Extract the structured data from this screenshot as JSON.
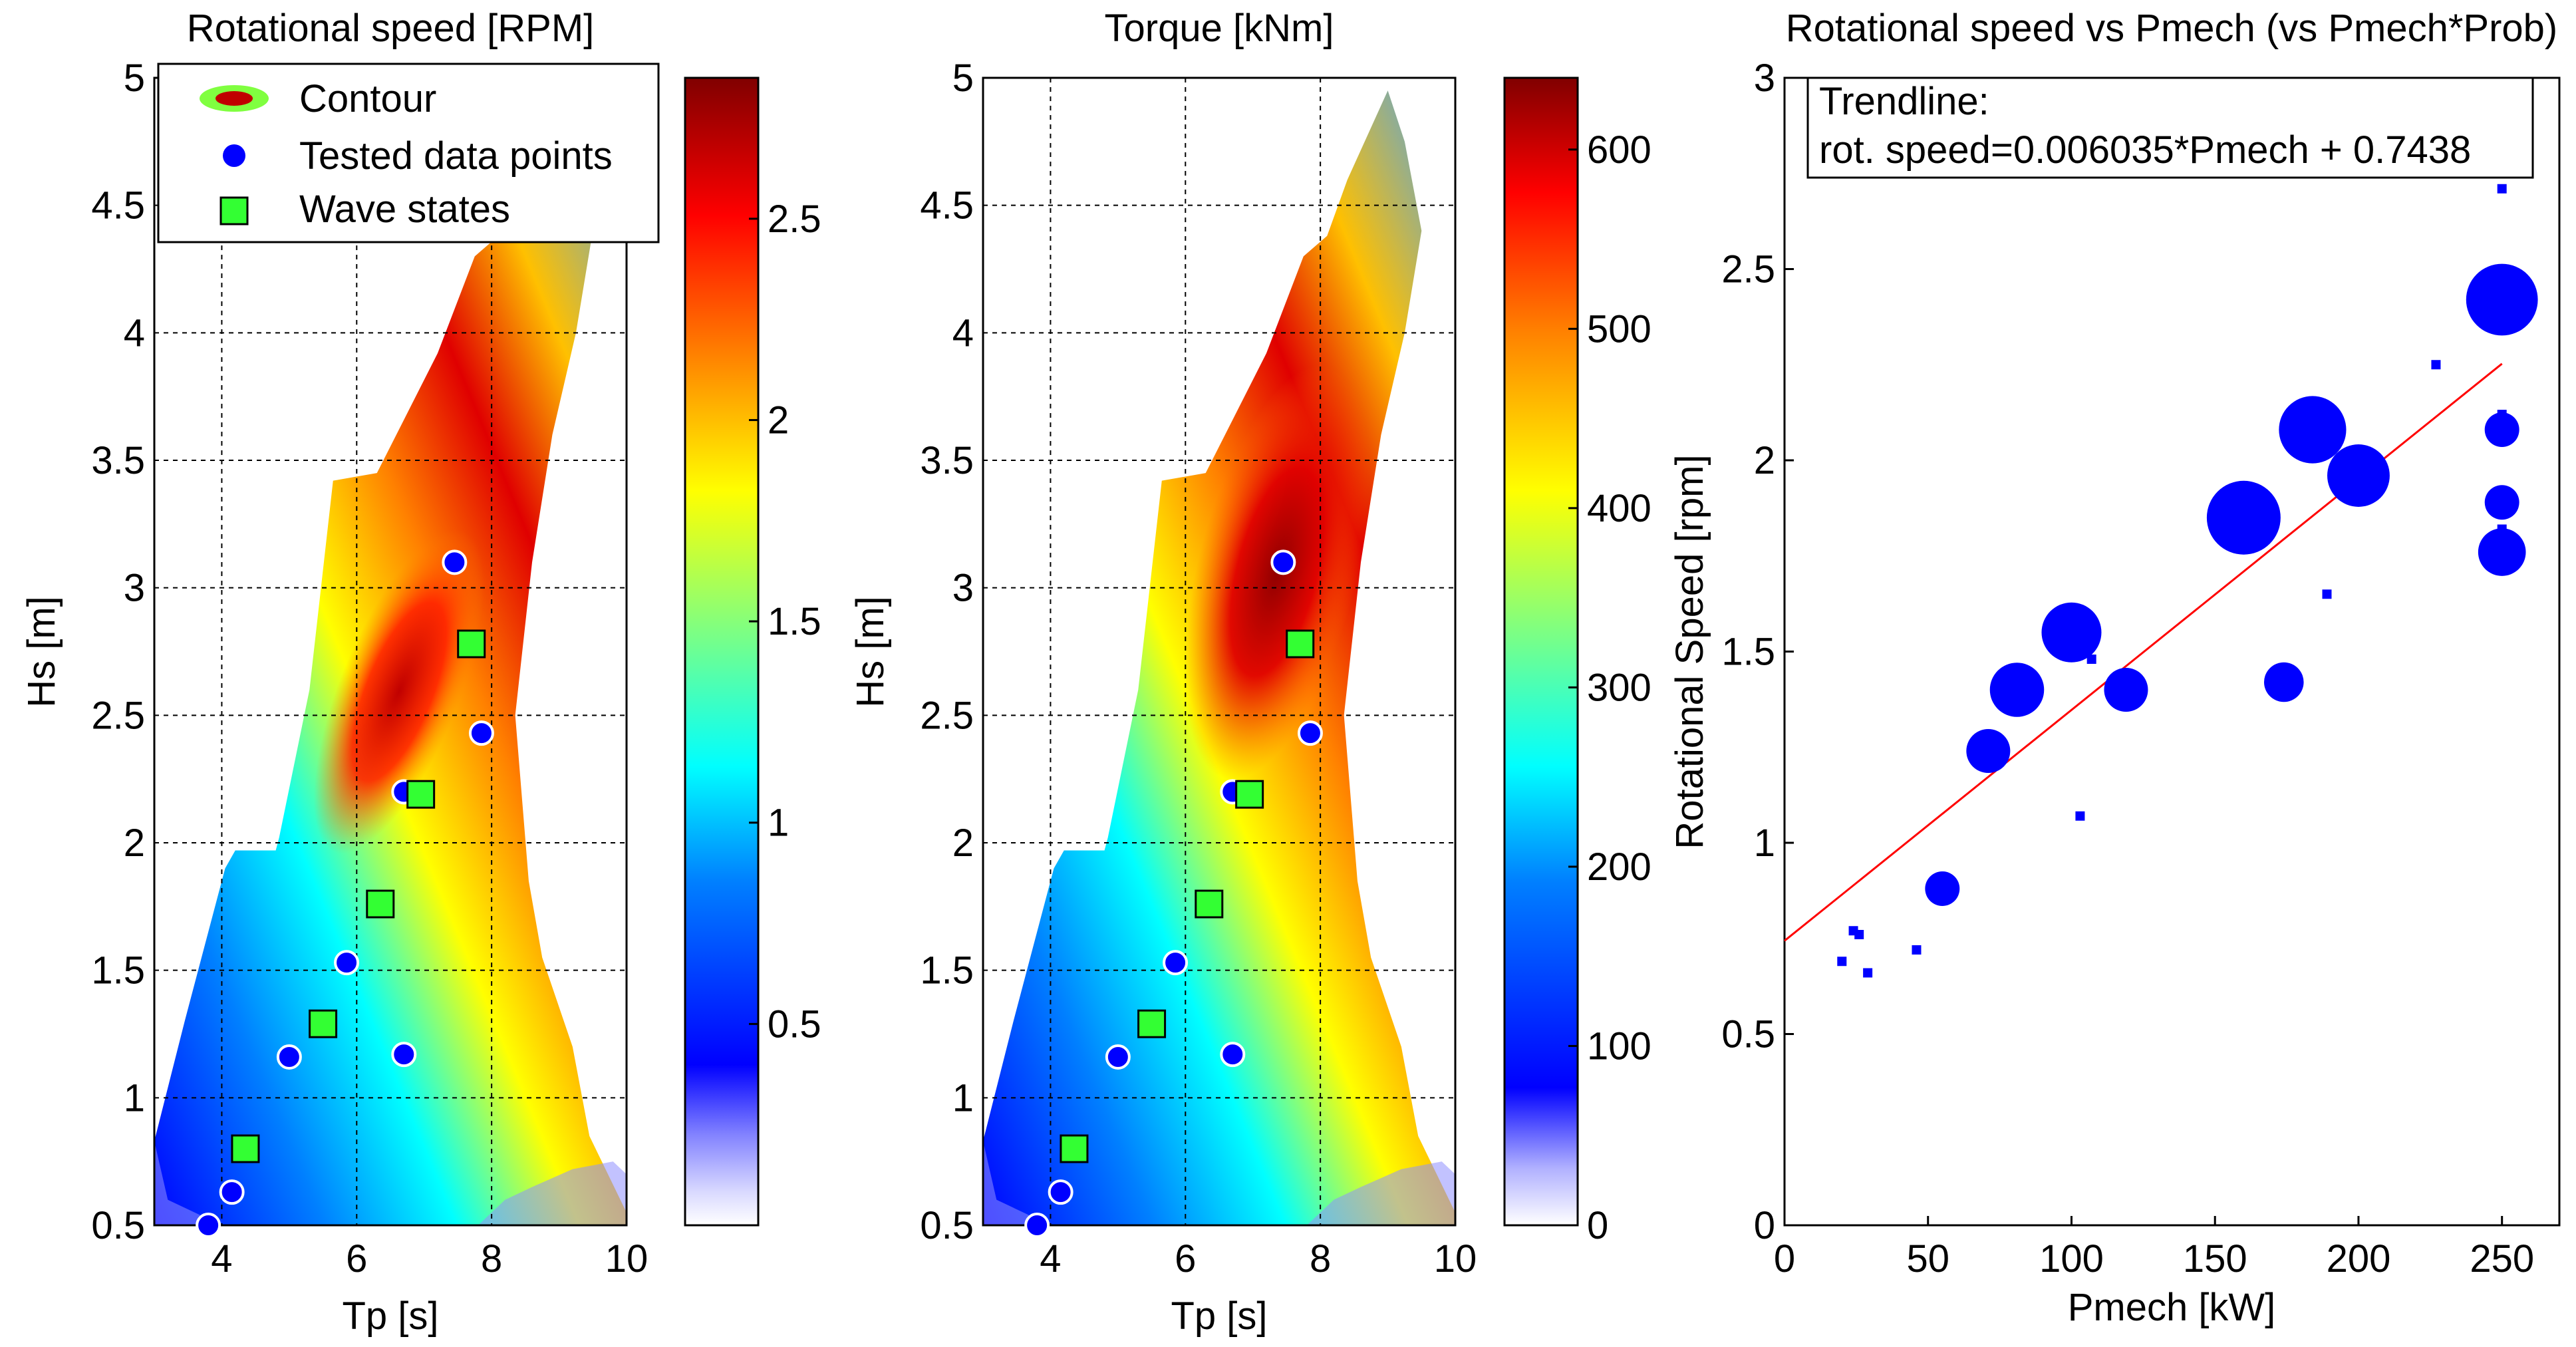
{
  "chart_data": [
    {
      "type": "contour",
      "title": "Rotational speed [RPM]",
      "xlabel": "Tp [s]",
      "ylabel": "Hs [m]",
      "xlim": [
        3,
        10
      ],
      "ylim": [
        0.5,
        5
      ],
      "xticks": [
        "4",
        "6",
        "8",
        "10"
      ],
      "yticks": [
        "0.5",
        "1",
        "1.5",
        "2",
        "2.5",
        "3",
        "3.5",
        "4",
        "4.5",
        "5"
      ],
      "grid": true,
      "colorbar": {
        "range": [
          0,
          2.85
        ],
        "ticks": [
          "0.5",
          "1",
          "1.5",
          "2",
          "2.5"
        ]
      },
      "legend": {
        "placement": "top-left",
        "entries": [
          "Contour",
          "Tested data points",
          "Wave states"
        ]
      },
      "tested_points": [
        {
          "x": 3.8,
          "y": 0.5
        },
        {
          "x": 4.15,
          "y": 0.63
        },
        {
          "x": 5.0,
          "y": 1.16
        },
        {
          "x": 6.7,
          "y": 1.17
        },
        {
          "x": 5.85,
          "y": 1.53
        },
        {
          "x": 6.7,
          "y": 2.2
        },
        {
          "x": 7.85,
          "y": 2.43
        },
        {
          "x": 7.45,
          "y": 3.1
        }
      ],
      "wave_states": [
        {
          "x": 4.35,
          "y": 0.8
        },
        {
          "x": 5.5,
          "y": 1.29
        },
        {
          "x": 6.35,
          "y": 1.76
        },
        {
          "x": 6.95,
          "y": 2.19
        },
        {
          "x": 7.7,
          "y": 2.78
        }
      ]
    },
    {
      "type": "contour",
      "title": "Torque [kNm]",
      "xlabel": "Tp [s]",
      "ylabel": "Hs [m]",
      "xlim": [
        3,
        10
      ],
      "ylim": [
        0.5,
        5
      ],
      "xticks": [
        "4",
        "6",
        "8",
        "10"
      ],
      "yticks": [
        "0.5",
        "1",
        "1.5",
        "2",
        "2.5",
        "3",
        "3.5",
        "4",
        "4.5",
        "5"
      ],
      "grid": true,
      "colorbar": {
        "range": [
          0,
          640
        ],
        "ticks": [
          "0",
          "100",
          "200",
          "300",
          "400",
          "500",
          "600"
        ]
      },
      "tested_points": [
        {
          "x": 3.8,
          "y": 0.5
        },
        {
          "x": 4.15,
          "y": 0.63
        },
        {
          "x": 5.0,
          "y": 1.16
        },
        {
          "x": 6.7,
          "y": 1.17
        },
        {
          "x": 5.85,
          "y": 1.53
        },
        {
          "x": 6.7,
          "y": 2.2
        },
        {
          "x": 7.85,
          "y": 2.43
        },
        {
          "x": 7.45,
          "y": 3.1
        }
      ],
      "wave_states": [
        {
          "x": 4.35,
          "y": 0.8
        },
        {
          "x": 5.5,
          "y": 1.29
        },
        {
          "x": 6.35,
          "y": 1.76
        },
        {
          "x": 6.95,
          "y": 2.19
        },
        {
          "x": 7.7,
          "y": 2.78
        }
      ]
    },
    {
      "type": "scatter",
      "title": "Rotational speed vs Pmech (vs Pmech*Prob)",
      "xlabel": "Pmech [kW]",
      "ylabel": "Rotational Speed [rpm]",
      "xlim": [
        0,
        270
      ],
      "ylim": [
        0,
        3
      ],
      "xticks": [
        "0",
        "50",
        "100",
        "150",
        "200",
        "250"
      ],
      "yticks": [
        "0",
        "0.5",
        "1",
        "1.5",
        "2",
        "2.5",
        "3"
      ],
      "grid": false,
      "annotation": [
        "Trendline:",
        "rot. speed=0.006035*Pmech + 0.7438"
      ],
      "trendline": {
        "slope": 0.006035,
        "intercept": 0.7438,
        "x_range": [
          0,
          250
        ]
      },
      "points": [
        {
          "x": 20,
          "y": 0.69,
          "w": 1
        },
        {
          "x": 24,
          "y": 0.77,
          "w": 1
        },
        {
          "x": 26,
          "y": 0.76,
          "w": 1
        },
        {
          "x": 29,
          "y": 0.66,
          "w": 1
        },
        {
          "x": 46,
          "y": 0.72,
          "w": 1
        },
        {
          "x": 55,
          "y": 0.88,
          "w": 2
        },
        {
          "x": 71,
          "y": 1.24,
          "w": 4
        },
        {
          "x": 81,
          "y": 1.4,
          "w": 7
        },
        {
          "x": 100,
          "y": 1.55,
          "w": 9
        },
        {
          "x": 103,
          "y": 1.07,
          "w": 1
        },
        {
          "x": 107,
          "y": 1.48,
          "w": 1
        },
        {
          "x": 119,
          "y": 1.4,
          "w": 4
        },
        {
          "x": 160,
          "y": 1.85,
          "w": 15
        },
        {
          "x": 174,
          "y": 1.42,
          "w": 3
        },
        {
          "x": 184,
          "y": 2.08,
          "w": 12
        },
        {
          "x": 189,
          "y": 1.65,
          "w": 1
        },
        {
          "x": 200,
          "y": 1.96,
          "w": 10
        },
        {
          "x": 227,
          "y": 2.25,
          "w": 1
        },
        {
          "x": 250,
          "y": 2.71,
          "w": 1
        },
        {
          "x": 250,
          "y": 2.42,
          "w": 14
        },
        {
          "x": 250,
          "y": 2.12,
          "w": 1
        },
        {
          "x": 250,
          "y": 2.08,
          "w": 2
        },
        {
          "x": 250,
          "y": 1.89,
          "w": 2
        },
        {
          "x": 250,
          "y": 1.82,
          "w": 1
        },
        {
          "x": 250,
          "y": 1.76,
          "w": 5
        }
      ]
    }
  ]
}
